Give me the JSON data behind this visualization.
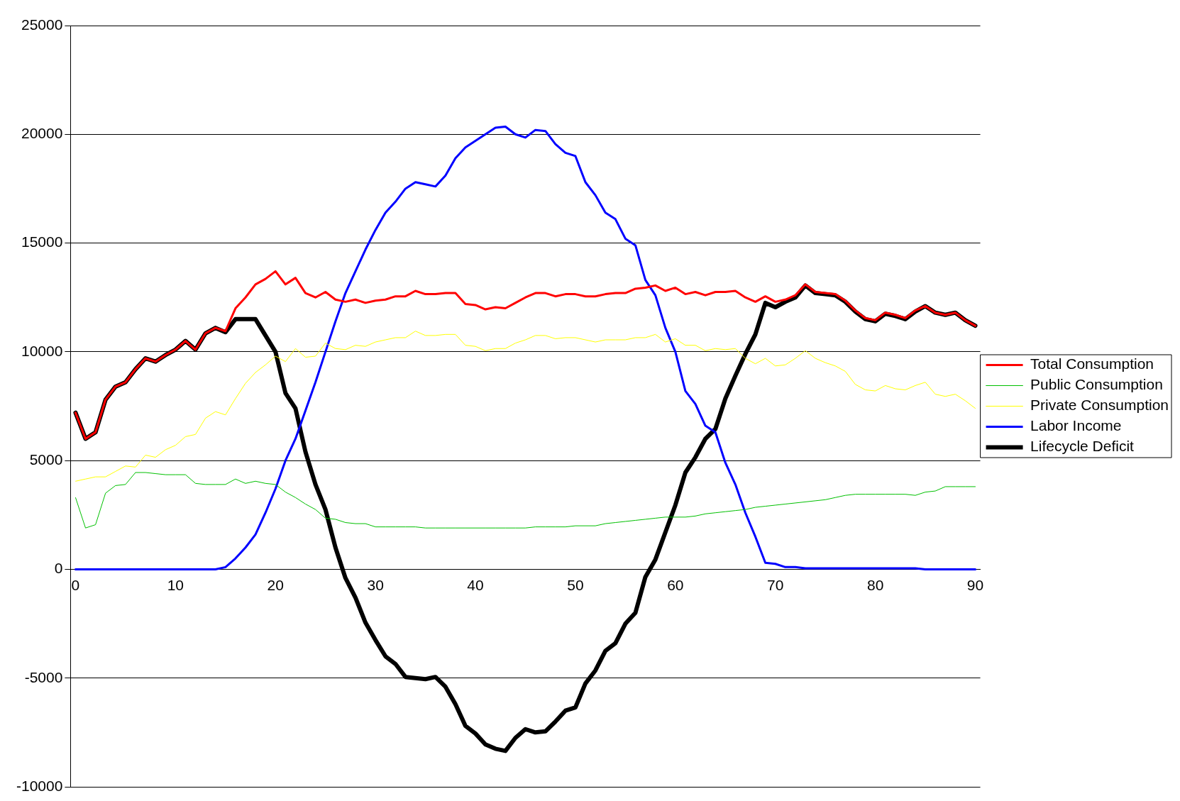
{
  "chart_data": {
    "type": "line",
    "x": [
      0,
      1,
      2,
      3,
      4,
      5,
      6,
      7,
      8,
      9,
      10,
      11,
      12,
      13,
      14,
      15,
      16,
      17,
      18,
      19,
      20,
      21,
      22,
      23,
      24,
      25,
      26,
      27,
      28,
      29,
      30,
      31,
      32,
      33,
      34,
      35,
      36,
      37,
      38,
      39,
      40,
      41,
      42,
      43,
      44,
      45,
      46,
      47,
      48,
      49,
      50,
      51,
      52,
      53,
      54,
      55,
      56,
      57,
      58,
      59,
      60,
      61,
      62,
      63,
      64,
      65,
      66,
      67,
      68,
      69,
      70,
      71,
      72,
      73,
      74,
      75,
      76,
      77,
      78,
      79,
      80,
      81,
      82,
      83,
      84,
      85,
      86,
      87,
      88,
      89,
      90
    ],
    "xlim": [
      -0.5,
      90.5
    ],
    "xticks": [
      0,
      10,
      20,
      30,
      40,
      50,
      60,
      70,
      80,
      90
    ],
    "ylim": [
      -10000,
      25000
    ],
    "yticks": [
      -10000,
      -5000,
      0,
      5000,
      10000,
      15000,
      20000,
      25000
    ],
    "grid": "y",
    "legend": "right",
    "marker": "none",
    "line_style": "solid",
    "series": [
      {
        "name": "Total Consumption",
        "color": "#ff0000",
        "values": [
          7200,
          6000,
          6300,
          7800,
          8400,
          8600,
          9200,
          9700,
          9550,
          9850,
          10100,
          10500,
          10100,
          10850,
          11100,
          10950,
          12000,
          12500,
          13100,
          13350,
          13700,
          13100,
          13400,
          12700,
          12500,
          12750,
          12400,
          12300,
          12400,
          12250,
          12350,
          12400,
          12550,
          12550,
          12800,
          12650,
          12650,
          12700,
          12700,
          12200,
          12150,
          11950,
          12050,
          12000,
          12250,
          12500,
          12700,
          12700,
          12550,
          12650,
          12650,
          12550,
          12550,
          12650,
          12700,
          12700,
          12900,
          12950,
          13050,
          12800,
          12950,
          12650,
          12750,
          12600,
          12750,
          12750,
          12800,
          12500,
          12300,
          12550,
          12300,
          12400,
          12600,
          13100,
          12750,
          12700,
          12650,
          12350,
          11900,
          11550,
          11450,
          11800,
          11700,
          11550,
          11900,
          12100,
          11800,
          11700,
          11800,
          11450,
          11200
        ]
      },
      {
        "name": "Public Consumption",
        "color": "#00c000",
        "values": [
          3300,
          1900,
          2050,
          3500,
          3850,
          3900,
          4450,
          4450,
          4400,
          4350,
          4350,
          4350,
          3950,
          3900,
          3900,
          3900,
          4150,
          3950,
          4050,
          3950,
          3900,
          3550,
          3300,
          3000,
          2750,
          2350,
          2300,
          2150,
          2100,
          2100,
          1950,
          1950,
          1950,
          1950,
          1950,
          1900,
          1900,
          1900,
          1900,
          1900,
          1900,
          1900,
          1900,
          1900,
          1900,
          1900,
          1950,
          1950,
          1950,
          1950,
          2000,
          2000,
          2000,
          2100,
          2150,
          2200,
          2250,
          2300,
          2350,
          2400,
          2400,
          2400,
          2450,
          2550,
          2600,
          2650,
          2700,
          2750,
          2850,
          2900,
          2950,
          3000,
          3050,
          3100,
          3150,
          3200,
          3300,
          3400,
          3450,
          3450,
          3450,
          3450,
          3450,
          3450,
          3400,
          3550,
          3600,
          3800,
          3800,
          3800,
          3800
        ]
      },
      {
        "name": "Private Consumption",
        "color": "#ffff00",
        "values": [
          4050,
          4150,
          4250,
          4250,
          4500,
          4750,
          4700,
          5250,
          5150,
          5500,
          5700,
          6100,
          6200,
          6950,
          7250,
          7100,
          7850,
          8550,
          9050,
          9400,
          9800,
          9550,
          10150,
          9750,
          9800,
          10400,
          10150,
          10100,
          10300,
          10250,
          10450,
          10550,
          10650,
          10650,
          10950,
          10750,
          10750,
          10800,
          10800,
          10300,
          10250,
          10050,
          10150,
          10150,
          10400,
          10550,
          10750,
          10750,
          10600,
          10650,
          10650,
          10550,
          10450,
          10550,
          10550,
          10550,
          10650,
          10650,
          10800,
          10450,
          10600,
          10300,
          10300,
          10050,
          10150,
          10100,
          10150,
          9700,
          9450,
          9700,
          9350,
          9400,
          9700,
          10050,
          9700,
          9500,
          9350,
          9100,
          8500,
          8250,
          8200,
          8450,
          8300,
          8250,
          8450,
          8600,
          8050,
          7950,
          8050,
          7750,
          7400
        ]
      },
      {
        "name": "Labor Income",
        "color": "#0000ff",
        "values": [
          0,
          0,
          0,
          0,
          0,
          0,
          0,
          0,
          0,
          0,
          0,
          0,
          0,
          0,
          0,
          100,
          500,
          1000,
          1600,
          2600,
          3700,
          5000,
          6000,
          7300,
          8600,
          10000,
          11400,
          12700,
          13700,
          14700,
          15600,
          16400,
          16900,
          17500,
          17800,
          17700,
          17600,
          18100,
          18900,
          19400,
          19700,
          20000,
          20300,
          20350,
          20000,
          19850,
          20200,
          20150,
          19550,
          19150,
          19000,
          17800,
          17200,
          16400,
          16100,
          15200,
          14900,
          13300,
          12600,
          11100,
          10000,
          8200,
          7600,
          6600,
          6300,
          4900,
          3900,
          2600,
          1500,
          300,
          250,
          100,
          100,
          50,
          50,
          50,
          50,
          50,
          50,
          50,
          50,
          50,
          50,
          50,
          50,
          0,
          0,
          0,
          0,
          0,
          0
        ]
      },
      {
        "name": "Lifecycle Deficit",
        "color": "#000000",
        "values": [
          7200,
          6000,
          6300,
          7800,
          8400,
          8600,
          9200,
          9700,
          9550,
          9850,
          10100,
          10500,
          10100,
          10850,
          11100,
          10900,
          11500,
          11500,
          11500,
          10750,
          10000,
          8100,
          7400,
          5400,
          3900,
          2750,
          1000,
          -400,
          -1300,
          -2450,
          -3250,
          -4000,
          -4350,
          -4950,
          -5000,
          -5050,
          -4950,
          -5400,
          -6200,
          -7200,
          -7550,
          -8050,
          -8250,
          -8350,
          -7750,
          -7350,
          -7500,
          -7450,
          -7000,
          -6500,
          -6350,
          -5250,
          -4650,
          -3750,
          -3400,
          -2500,
          -2000,
          -350,
          450,
          1700,
          2950,
          4450,
          5150,
          6000,
          6450,
          7850,
          8900,
          9900,
          10800,
          12250,
          12050,
          12300,
          12500,
          13050,
          12700,
          12650,
          12600,
          12300,
          11850,
          11500,
          11400,
          11750,
          11650,
          11500,
          11850,
          12100,
          11800,
          11700,
          11800,
          11450,
          11200
        ]
      }
    ]
  }
}
